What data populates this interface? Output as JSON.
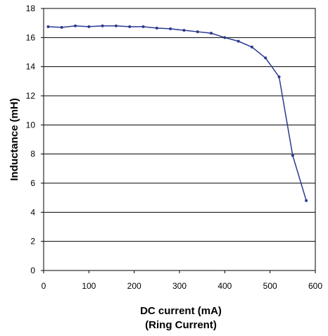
{
  "chart_data": {
    "type": "line",
    "title": "",
    "xlabel": "DC current (mA)",
    "xlabel_line2": "(Ring Current)",
    "ylabel": "Inductance (mH)",
    "xlim": [
      0,
      600
    ],
    "ylim": [
      0,
      18
    ],
    "x_ticks": [
      0,
      100,
      200,
      300,
      400,
      500,
      600
    ],
    "y_ticks": [
      0,
      2,
      4,
      6,
      8,
      10,
      12,
      14,
      16,
      18
    ],
    "grid": "horizontal",
    "legend": "none",
    "line_color": "#2a3a8f",
    "series": [
      {
        "x": [
          10,
          40,
          70,
          100,
          130,
          160,
          190,
          220,
          250,
          280,
          310,
          340,
          370,
          400,
          430,
          460,
          490,
          520,
          550,
          580
        ],
        "values": [
          16.75,
          16.7,
          16.8,
          16.75,
          16.8,
          16.8,
          16.75,
          16.75,
          16.65,
          16.6,
          16.5,
          16.4,
          16.3,
          16.0,
          15.75,
          15.35,
          14.6,
          13.3,
          7.9,
          4.8
        ]
      }
    ]
  }
}
